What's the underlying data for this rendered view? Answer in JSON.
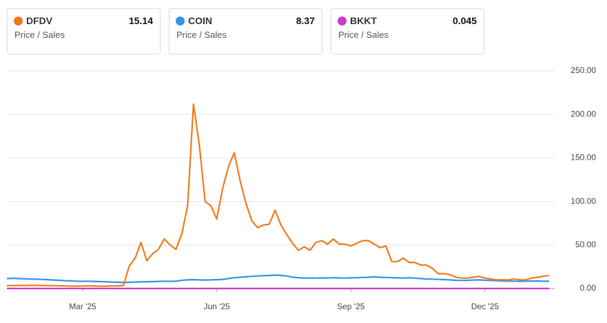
{
  "chart_data": {
    "type": "line",
    "metric": "Price / Sales",
    "categories": [
      null,
      null,
      null,
      null,
      null,
      null,
      null,
      null,
      null,
      null,
      null,
      null,
      null,
      "Mar '25",
      null,
      null,
      null,
      null,
      null,
      null,
      null,
      null,
      null,
      null,
      null,
      null,
      null,
      null,
      null,
      null,
      null,
      null,
      null,
      null,
      null,
      null,
      "Jun '25",
      null,
      null,
      null,
      null,
      null,
      null,
      null,
      null,
      null,
      null,
      null,
      null,
      null,
      null,
      null,
      null,
      null,
      null,
      null,
      null,
      null,
      null,
      "Sep '25",
      null,
      null,
      null,
      null,
      null,
      null,
      null,
      null,
      null,
      null,
      null,
      null,
      null,
      null,
      null,
      null,
      null,
      null,
      null,
      null,
      null,
      null,
      "Dec '25",
      null,
      null,
      null,
      null,
      null,
      null,
      null,
      null,
      null,
      null,
      null
    ],
    "series": [
      {
        "name": "DFDV",
        "color": "#f07a17",
        "values": [
          3.5,
          3.5,
          3.6,
          3.5,
          3.6,
          3.7,
          3.5,
          3.4,
          3.3,
          3.2,
          3.0,
          2.8,
          2.8,
          2.9,
          3.0,
          3.0,
          2.7,
          2.8,
          3.0,
          3.1,
          3.5,
          26,
          35,
          53,
          32,
          40,
          45,
          57,
          50,
          45,
          63,
          95,
          212,
          165,
          100,
          95,
          80,
          115,
          140,
          156,
          124,
          98,
          78,
          70,
          73,
          74,
          90,
          73,
          62,
          52,
          44,
          48,
          44,
          53,
          55,
          51,
          57,
          51,
          51,
          49,
          52,
          55,
          55,
          51,
          47,
          49,
          31,
          31,
          35,
          30,
          30,
          27,
          27,
          23,
          17,
          17,
          16,
          13,
          12,
          12,
          13,
          14,
          12,
          11,
          10,
          10,
          10,
          11,
          10,
          10,
          12,
          13,
          14,
          15.14
        ]
      },
      {
        "name": "COIN",
        "color": "#2e95e8",
        "values": [
          11.5,
          11.8,
          11.5,
          11.2,
          11.0,
          10.8,
          10.5,
          10.2,
          9.8,
          9.5,
          9.0,
          8.8,
          8.5,
          8.3,
          8.5,
          8.2,
          8.0,
          7.8,
          7.5,
          7.2,
          7.0,
          7.2,
          7.5,
          7.8,
          7.8,
          8.0,
          8.2,
          8.5,
          8.3,
          8.5,
          9.5,
          10.0,
          10.2,
          10.0,
          9.8,
          10.0,
          10.2,
          10.5,
          11.5,
          12.5,
          13.0,
          13.5,
          14.0,
          14.5,
          14.8,
          15.0,
          15.5,
          15.0,
          14.5,
          13.0,
          12.5,
          12.0,
          12.2,
          12.0,
          12.3,
          12.0,
          12.5,
          12.2,
          12.0,
          12.3,
          12.5,
          12.8,
          13.0,
          13.5,
          13.0,
          12.8,
          12.5,
          12.3,
          12.0,
          12.5,
          12.0,
          11.5,
          11.0,
          10.8,
          10.5,
          10.3,
          10.0,
          9.5,
          9.3,
          9.5,
          9.8,
          10.0,
          9.6,
          9.3,
          9.0,
          8.8,
          8.6,
          8.5,
          8.3,
          8.5,
          8.6,
          8.8,
          8.5,
          8.37
        ]
      },
      {
        "name": "BKKT",
        "color": "#c93cc9",
        "values": [
          0.06,
          0.06,
          0.06,
          0.06,
          0.06,
          0.06,
          0.06,
          0.06,
          0.06,
          0.06,
          0.06,
          0.06,
          0.06,
          0.06,
          0.06,
          0.06,
          0.06,
          0.06,
          0.06,
          0.06,
          0.06,
          0.06,
          0.06,
          0.06,
          0.06,
          0.06,
          0.06,
          0.06,
          0.06,
          0.06,
          0.05,
          0.05,
          0.05,
          0.05,
          0.05,
          0.05,
          0.05,
          0.05,
          0.05,
          0.05,
          0.05,
          0.05,
          0.05,
          0.05,
          0.05,
          0.05,
          0.05,
          0.05,
          0.05,
          0.05,
          0.05,
          0.05,
          0.05,
          0.05,
          0.05,
          0.05,
          0.05,
          0.05,
          0.05,
          0.05,
          0.05,
          0.05,
          0.05,
          0.05,
          0.05,
          0.05,
          0.05,
          0.05,
          0.05,
          0.05,
          0.05,
          0.05,
          0.05,
          0.05,
          0.05,
          0.05,
          0.05,
          0.05,
          0.05,
          0.05,
          0.05,
          0.05,
          0.05,
          0.05,
          0.05,
          0.05,
          0.05,
          0.05,
          0.045,
          0.045,
          0.045,
          0.045,
          0.045,
          0.045
        ]
      }
    ],
    "ylim": [
      0,
      250
    ],
    "yticks": [
      {
        "value": 0,
        "label": "0.00"
      },
      {
        "value": 50,
        "label": "50.00"
      },
      {
        "value": 100,
        "label": "100.00"
      },
      {
        "value": 150,
        "label": "150.00"
      },
      {
        "value": 200,
        "label": "200.00"
      },
      {
        "value": 250,
        "label": "250.00"
      }
    ],
    "grid": true
  }
}
